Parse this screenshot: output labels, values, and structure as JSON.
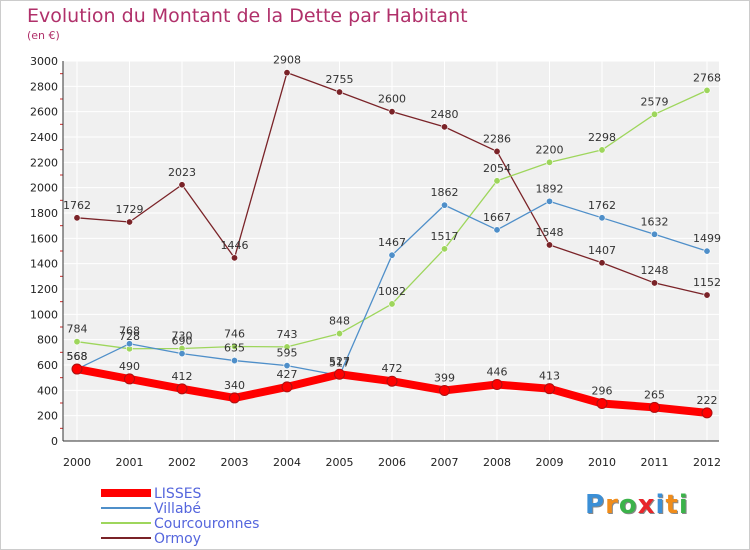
{
  "header": {
    "title": "Evolution du Montant de la Dette par Habitant",
    "subtitle": "(en €)"
  },
  "logo": {
    "letters": [
      "P",
      "r",
      "o",
      "x",
      "i",
      "t",
      "i"
    ],
    "colors": [
      "#3b8fd6",
      "#f08c1a",
      "#3bb34a",
      "#e8262b",
      "#3b8fd6",
      "#f08c1a",
      "#3bb34a"
    ]
  },
  "chart_data": {
    "type": "line",
    "title": "Evolution du Montant de la Dette par Habitant",
    "subtitle": "(en €)",
    "xlabel": "",
    "ylabel": "",
    "x": [
      "2000",
      "2001",
      "2002",
      "2003",
      "2004",
      "2005",
      "2006",
      "2007",
      "2008",
      "2009",
      "2010",
      "2011",
      "2012"
    ],
    "ylim": [
      0,
      3000
    ],
    "yticks": [
      0,
      200,
      400,
      600,
      800,
      1000,
      1200,
      1400,
      1600,
      1800,
      2000,
      2200,
      2400,
      2600,
      2800,
      3000
    ],
    "grid": true,
    "legend": "bottom-left",
    "series": [
      {
        "name": "LISSES",
        "color": "#ff0000",
        "values": [
          568,
          490,
          412,
          340,
          427,
          527,
          472,
          399,
          446,
          413,
          296,
          265,
          222
        ],
        "labels": [
          "568",
          "490",
          "412",
          "340",
          "427",
          "527",
          "472",
          "399",
          "446",
          "413",
          "296",
          "265",
          "222"
        ]
      },
      {
        "name": "Villabé",
        "color": "#4f8fc9",
        "values": [
          568,
          768,
          690,
          635,
          595,
          517,
          1467,
          1862,
          1667,
          1892,
          1762,
          1632,
          1499
        ],
        "labels": [
          "568",
          "768",
          "690",
          "635",
          "595",
          "517",
          "1467",
          "1862",
          "1667",
          "1892",
          "1762",
          "1632",
          "1499"
        ]
      },
      {
        "name": "Courcouronnes",
        "color": "#9ed65c",
        "values": [
          784,
          728,
          730,
          746,
          743,
          848,
          1082,
          1517,
          2054,
          2200,
          2298,
          2579,
          2768
        ],
        "labels": [
          "784",
          "728",
          "730",
          "746",
          "743",
          "848",
          "1082",
          "1517",
          "2054",
          "2200",
          "2298",
          "2579",
          "2768"
        ]
      },
      {
        "name": "Ormoy",
        "color": "#7a2328",
        "values": [
          1762,
          1729,
          2023,
          1446,
          2908,
          2755,
          2600,
          2480,
          2286,
          1548,
          1407,
          1248,
          1152
        ],
        "labels": [
          "1762",
          "1729",
          "2023",
          "1446",
          "2908",
          "2755",
          "2600",
          "2480",
          "2286",
          "1548",
          "1407",
          "1248",
          "1152"
        ]
      }
    ]
  }
}
